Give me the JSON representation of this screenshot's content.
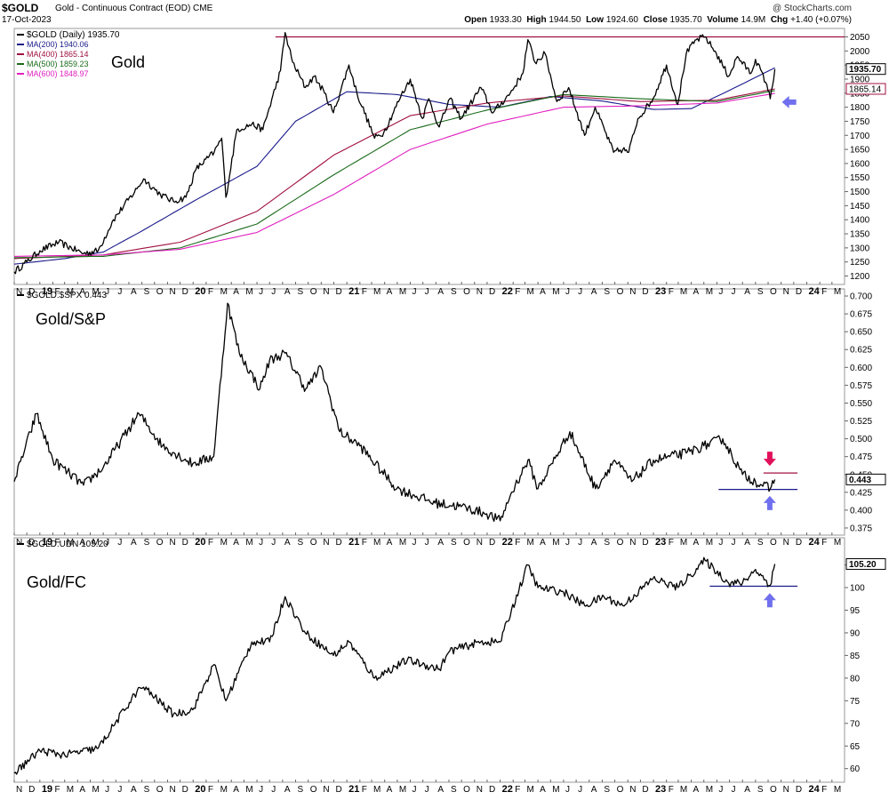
{
  "header": {
    "symbol": "$GOLD",
    "description": "Gold - Continuous Contract (EOD) CME",
    "date": "17-Oct-2023",
    "credit": "@ StockCharts.com",
    "open_label": "Open",
    "open": "1933.30",
    "high_label": "High",
    "high": "1944.50",
    "low_label": "Low",
    "low": "1924.60",
    "close_label": "Close",
    "close": "1935.70",
    "volume_label": "Volume",
    "volume": "14.9M",
    "chg_label": "Chg",
    "chg": "+1.40 (+0.07%)"
  },
  "colors": {
    "price": "#000000",
    "ma200": "#1a1a8c",
    "ma400": "#a01040",
    "ma500": "#1a6a1a",
    "ma600": "#e020c0",
    "resistance": "#a01040",
    "support": "#1a1a8c",
    "arrow_up": "#7070ee",
    "arrow_down": "#e0105a",
    "gridline": "#d8d8d8"
  },
  "x_axis": {
    "ticks": [
      "N",
      "D",
      "19",
      "F",
      "M",
      "A",
      "M",
      "J",
      "J",
      "A",
      "S",
      "O",
      "N",
      "D",
      "20",
      "F",
      "M",
      "A",
      "M",
      "J",
      "J",
      "A",
      "S",
      "O",
      "N",
      "D",
      "21",
      "F",
      "M",
      "A",
      "M",
      "J",
      "J",
      "A",
      "S",
      "O",
      "N",
      "D",
      "22",
      "F",
      "M",
      "A",
      "M",
      "J",
      "J",
      "A",
      "S",
      "O",
      "N",
      "D",
      "23",
      "F",
      "M",
      "A",
      "M",
      "J",
      "J",
      "A",
      "S",
      "O",
      "N",
      "D",
      "24",
      "F",
      "M"
    ],
    "start": "2018-11-01",
    "end": "2024-03-31"
  },
  "chart_data": [
    {
      "type": "line",
      "name": "gold-panel",
      "label": "Gold",
      "legend_title": "$GOLD (Daily) 1935.70",
      "ylim": [
        1170,
        2080
      ],
      "yticks": [
        1200,
        1250,
        1300,
        1350,
        1400,
        1450,
        1500,
        1550,
        1600,
        1650,
        1700,
        1750,
        1800,
        1850,
        1900,
        1950,
        2000,
        2050
      ],
      "series": [
        {
          "name": "$GOLD (Daily) 1935.70",
          "color_key": "price",
          "x": [
            "2018-11-01",
            "2018-12-01",
            "2019-01-01",
            "2019-02-15",
            "2019-04-15",
            "2019-05-20",
            "2019-06-25",
            "2019-08-20",
            "2019-09-05",
            "2019-10-15",
            "2019-11-15",
            "2019-12-15",
            "2020-01-08",
            "2020-02-20",
            "2020-03-09",
            "2020-03-19",
            "2020-04-14",
            "2020-05-20",
            "2020-06-15",
            "2020-07-27",
            "2020-08-07",
            "2020-08-25",
            "2020-09-24",
            "2020-10-15",
            "2020-11-09",
            "2020-11-30",
            "2021-01-06",
            "2021-01-25",
            "2021-03-08",
            "2021-03-30",
            "2021-05-10",
            "2021-06-01",
            "2021-06-30",
            "2021-07-15",
            "2021-08-09",
            "2021-09-03",
            "2021-09-30",
            "2021-11-16",
            "2021-12-15",
            "2022-01-25",
            "2022-02-24",
            "2022-03-08",
            "2022-03-25",
            "2022-04-18",
            "2022-05-16",
            "2022-06-13",
            "2022-07-21",
            "2022-08-15",
            "2022-09-28",
            "2022-10-20",
            "2022-11-03",
            "2022-11-25",
            "2022-12-31",
            "2023-02-01",
            "2023-02-28",
            "2023-03-20",
            "2023-04-13",
            "2023-05-04",
            "2023-05-31",
            "2023-06-29",
            "2023-07-20",
            "2023-08-21",
            "2023-09-01",
            "2023-09-28",
            "2023-10-06",
            "2023-10-17"
          ],
          "y": [
            1215,
            1250,
            1290,
            1320,
            1280,
            1290,
            1400,
            1510,
            1545,
            1490,
            1465,
            1480,
            1580,
            1640,
            1690,
            1480,
            1720,
            1740,
            1720,
            1930,
            2065,
            1960,
            1870,
            1910,
            1850,
            1780,
            1950,
            1850,
            1690,
            1710,
            1840,
            1900,
            1760,
            1830,
            1730,
            1830,
            1760,
            1870,
            1780,
            1850,
            1920,
            2040,
            1960,
            1990,
            1820,
            1870,
            1700,
            1800,
            1640,
            1650,
            1640,
            1760,
            1830,
            1950,
            1810,
            1990,
            2040,
            2050,
            1990,
            1910,
            1980,
            1920,
            1970,
            1880,
            1830,
            1935.7
          ]
        },
        {
          "name": "MA(200) 1940.06",
          "color_key": "ma200",
          "x": [
            "2018-11-01",
            "2019-03-01",
            "2019-06-01",
            "2019-09-01",
            "2020-01-01",
            "2020-06-01",
            "2020-09-01",
            "2021-01-01",
            "2021-05-01",
            "2021-09-01",
            "2022-01-01",
            "2022-05-01",
            "2022-09-01",
            "2023-01-01",
            "2023-04-01",
            "2023-07-01",
            "2023-10-17"
          ],
          "y": [
            1242,
            1262,
            1285,
            1360,
            1465,
            1590,
            1750,
            1855,
            1845,
            1810,
            1800,
            1838,
            1822,
            1792,
            1795,
            1860,
            1940.06
          ]
        },
        {
          "name": "MA(400) 1865.14",
          "color_key": "ma400",
          "x": [
            "2018-11-01",
            "2019-06-01",
            "2019-12-01",
            "2020-06-01",
            "2020-12-01",
            "2021-06-01",
            "2021-12-01",
            "2022-06-01",
            "2022-12-01",
            "2023-06-01",
            "2023-10-17"
          ],
          "y": [
            1262,
            1275,
            1320,
            1430,
            1630,
            1770,
            1815,
            1840,
            1820,
            1825,
            1865.14
          ]
        },
        {
          "name": "MA(500) 1859.23",
          "color_key": "ma500",
          "x": [
            "2018-11-01",
            "2019-06-01",
            "2019-12-01",
            "2020-06-01",
            "2020-12-01",
            "2021-06-01",
            "2021-12-01",
            "2022-06-01",
            "2022-12-01",
            "2023-06-01",
            "2023-10-17"
          ],
          "y": [
            1265,
            1270,
            1300,
            1385,
            1560,
            1720,
            1790,
            1845,
            1830,
            1820,
            1859.23
          ]
        },
        {
          "name": "MA(600) 1848.97",
          "color_key": "ma600",
          "x": [
            "2018-11-01",
            "2019-06-01",
            "2019-12-01",
            "2020-06-01",
            "2020-12-01",
            "2021-06-01",
            "2021-12-01",
            "2022-06-01",
            "2022-12-01",
            "2023-06-01",
            "2023-10-17"
          ],
          "y": [
            1270,
            1275,
            1295,
            1355,
            1490,
            1650,
            1740,
            1800,
            1805,
            1815,
            1848.97
          ]
        }
      ],
      "hlines": [
        {
          "y": 2050,
          "x_from": "2020-07-15",
          "x_to": "2024-03-31",
          "color_key": "resistance"
        }
      ],
      "arrows": [
        {
          "direction": "left",
          "x": "2023-11-20",
          "y": 1818,
          "color_key": "arrow_up"
        }
      ],
      "last_labels": [
        {
          "text": "1935.70",
          "y": 1935.7,
          "style": "price"
        },
        {
          "text": "1865.14",
          "y": 1865.14,
          "style": "ma400"
        }
      ]
    },
    {
      "type": "line",
      "name": "gold-spx-panel",
      "label": "Gold/S&P",
      "legend_title": "$GOLD:$SPX 0.443",
      "ylim": [
        0.365,
        0.71
      ],
      "yticks": [
        0.375,
        0.4,
        0.425,
        0.45,
        0.475,
        0.5,
        0.525,
        0.55,
        0.575,
        0.6,
        0.625,
        0.65,
        0.675,
        0.7
      ],
      "ytick_labels": [
        "0.375",
        "0.400",
        "0.425",
        "0.450",
        "0.475",
        "0.500",
        "0.525",
        "0.550",
        "0.575",
        "0.600",
        "0.625",
        "0.650",
        "0.675",
        "0.700"
      ],
      "series": [
        {
          "name": "$GOLD:$SPX 0.443",
          "color_key": "price",
          "x": [
            "2018-11-01",
            "2018-12-24",
            "2019-02-01",
            "2019-04-15",
            "2019-06-01",
            "2019-08-25",
            "2019-10-20",
            "2019-12-31",
            "2020-02-19",
            "2020-03-23",
            "2020-04-20",
            "2020-06-08",
            "2020-07-01",
            "2020-08-07",
            "2020-09-25",
            "2020-11-01",
            "2020-12-15",
            "2021-02-01",
            "2021-04-30",
            "2021-07-30",
            "2021-09-30",
            "2021-11-30",
            "2022-01-01",
            "2022-01-25",
            "2022-03-08",
            "2022-04-01",
            "2022-06-16",
            "2022-08-16",
            "2022-09-30",
            "2022-11-10",
            "2023-01-01",
            "2023-03-20",
            "2023-05-01",
            "2023-06-15",
            "2023-08-01",
            "2023-09-01",
            "2023-10-06",
            "2023-10-17"
          ],
          "y": [
            0.44,
            0.535,
            0.47,
            0.435,
            0.46,
            0.535,
            0.49,
            0.465,
            0.475,
            0.69,
            0.62,
            0.57,
            0.61,
            0.62,
            0.57,
            0.6,
            0.51,
            0.49,
            0.43,
            0.41,
            0.405,
            0.395,
            0.385,
            0.42,
            0.47,
            0.43,
            0.51,
            0.43,
            0.47,
            0.44,
            0.47,
            0.48,
            0.49,
            0.5,
            0.45,
            0.44,
            0.43,
            0.443
          ]
        }
      ],
      "hlines": [
        {
          "y": 0.452,
          "x_from": "2023-09-20",
          "x_to": "2023-12-10",
          "color_key": "resistance"
        },
        {
          "y": 0.429,
          "x_from": "2023-06-05",
          "x_to": "2023-12-10",
          "color_key": "support"
        }
      ],
      "arrows": [
        {
          "direction": "down",
          "x": "2023-10-05",
          "y": 0.472,
          "color_key": "arrow_down"
        },
        {
          "direction": "up",
          "x": "2023-10-05",
          "y": 0.41,
          "color_key": "arrow_up"
        }
      ],
      "last_labels": [
        {
          "text": "0.443",
          "y": 0.443,
          "style": "price"
        }
      ]
    },
    {
      "type": "line",
      "name": "gold-fc-panel",
      "label": "Gold/FC",
      "legend_title": "$GOLD:UDN 105.20",
      "ylim": [
        57,
        111
      ],
      "yticks": [
        60,
        65,
        70,
        75,
        80,
        85,
        90,
        95,
        100,
        105
      ],
      "series": [
        {
          "name": "$GOLD:UDN 105.20",
          "color_key": "price",
          "x": [
            "2018-11-01",
            "2019-01-01",
            "2019-03-01",
            "2019-05-20",
            "2019-08-20",
            "2019-09-05",
            "2019-11-15",
            "2019-12-31",
            "2020-02-20",
            "2020-03-19",
            "2020-05-20",
            "2020-07-01",
            "2020-08-07",
            "2020-09-24",
            "2020-11-30",
            "2021-01-06",
            "2021-03-08",
            "2021-05-25",
            "2021-08-09",
            "2021-09-03",
            "2021-11-16",
            "2022-01-01",
            "2022-03-08",
            "2022-04-01",
            "2022-06-01",
            "2022-07-21",
            "2022-09-05",
            "2022-10-20",
            "2022-12-31",
            "2023-02-28",
            "2023-05-04",
            "2023-06-29",
            "2023-08-01",
            "2023-09-01",
            "2023-10-06",
            "2023-10-17"
          ],
          "y": [
            59,
            64,
            63,
            64.5,
            77,
            78,
            72,
            73,
            83,
            75,
            88,
            88,
            98,
            90,
            85,
            88,
            80,
            84,
            82,
            86,
            88,
            88,
            105,
            100,
            99,
            96,
            98,
            96,
            102,
            100,
            106,
            101,
            101,
            104,
            100.5,
            105.2
          ]
        }
      ],
      "hlines": [
        {
          "y": 100.3,
          "x_from": "2023-05-15",
          "x_to": "2023-12-10",
          "color_key": "support"
        }
      ],
      "arrows": [
        {
          "direction": "up",
          "x": "2023-10-05",
          "y": 97.2,
          "color_key": "arrow_up"
        }
      ],
      "last_labels": [
        {
          "text": "105.20",
          "y": 105.2,
          "style": "price"
        }
      ]
    }
  ]
}
